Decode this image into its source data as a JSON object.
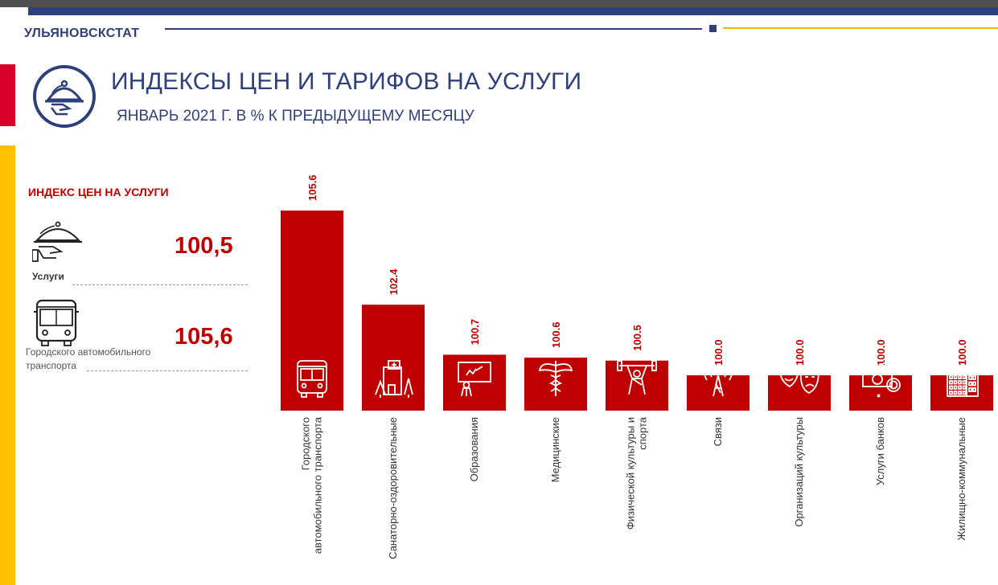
{
  "header": {
    "brand": "УЛЬЯНОВСКСТАТ",
    "title": "ИНДЕКСЫ ЦЕН И ТАРИФОВ НА УСЛУГИ",
    "subtitle": "ЯНВАРЬ 2021 Г. В % К ПРЕДЫДУЩЕМУ МЕСЯЦУ",
    "title_icon": "cloche-serving-icon"
  },
  "colors": {
    "navy": "#2f3f7a",
    "red": "#c00000",
    "accent_red": "#d6002a",
    "accent_yellow": "#ffc000"
  },
  "sidebar": {
    "heading": "ИНДЕКС ЦЕН НА УСЛУГИ",
    "kpis": [
      {
        "icon": "cloche-serving-icon",
        "label": "Услуги",
        "value": "100,5"
      },
      {
        "icon": "bus-icon",
        "label": "Городского автомобильного транспорта",
        "value": "105,6"
      }
    ]
  },
  "chart_data": {
    "type": "bar",
    "title": "",
    "xlabel": "",
    "ylabel": "",
    "ylim": [
      98.8,
      105.6
    ],
    "categories": [
      "Городского автомобильного транспорта",
      "Санаторно-оздоровительные",
      "Образования",
      "Медицинские",
      "Физической культуры и спорта",
      "Связи",
      "Организаций культуры",
      "Услуги банков",
      "Жилищно-коммунальные"
    ],
    "values": [
      105.6,
      102.4,
      100.7,
      100.6,
      100.5,
      100.0,
      100.0,
      100.0,
      100.0
    ],
    "value_labels": [
      "105.6",
      "102.4",
      "100.7",
      "100.6",
      "100.5",
      "100.0",
      "100.0",
      "100.0",
      "100.0"
    ],
    "category_icons": [
      "bus-icon",
      "sanatorium-icon",
      "teacher-board-icon",
      "caduceus-icon",
      "weightlifter-icon",
      "radio-tower-icon",
      "theater-masks-icon",
      "banknote-coin-icon",
      "apartment-building-icon"
    ],
    "grid": false,
    "legend": "none"
  }
}
